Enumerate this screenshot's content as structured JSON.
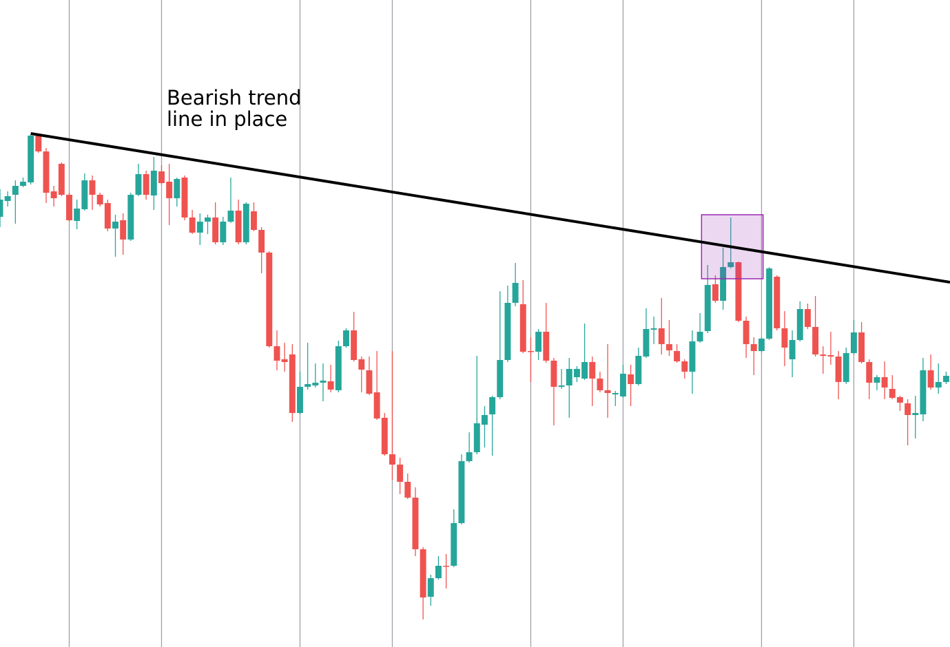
{
  "chart_data": {
    "type": "candlestick",
    "annotation": [
      "Bearish trend",
      "line in place"
    ],
    "categories": [
      null,
      null,
      null,
      null,
      null,
      null,
      null,
      null,
      null,
      null,
      null,
      null,
      null,
      null,
      null,
      null,
      null,
      null,
      null,
      null,
      null,
      null,
      null,
      null,
      null,
      null,
      null,
      null,
      null,
      null,
      null,
      null,
      null,
      null,
      null,
      null,
      null,
      null,
      null,
      null,
      null,
      null,
      null,
      null,
      null,
      null,
      null,
      null,
      null,
      null,
      null,
      null,
      null,
      null,
      null,
      null,
      null,
      null,
      null,
      null,
      null,
      null,
      null,
      null,
      null,
      null,
      null,
      null,
      null,
      null,
      null,
      null,
      null,
      null,
      null,
      null,
      null,
      null,
      null,
      null,
      null,
      null,
      null,
      null,
      null,
      null,
      null,
      null,
      null,
      null,
      null,
      null,
      null,
      null,
      null,
      null,
      null,
      null,
      null,
      null,
      null,
      null,
      null,
      null,
      null,
      null,
      null,
      null,
      null,
      null,
      null,
      null,
      null,
      null,
      null,
      null,
      null,
      null,
      null,
      null,
      null,
      null,
      null,
      null
    ],
    "open": [
      625,
      648,
      657,
      670,
      675,
      743,
      720,
      662,
      702,
      657,
      619,
      636,
      678,
      657,
      645,
      608,
      620,
      592,
      657,
      687,
      656,
      691,
      676,
      652,
      682,
      624,
      602,
      618,
      624,
      588,
      618,
      634,
      588,
      633,
      606,
      573,
      437,
      418,
      425,
      340,
      378,
      380,
      384,
      386,
      373,
      437,
      460,
      418,
      402,
      370,
      333,
      280,
      265,
      240,
      217,
      142,
      73,
      100,
      118,
      118,
      180,
      270,
      283,
      323,
      338,
      363,
      417,
      500,
      498,
      430,
      429,
      458,
      416,
      378,
      380,
      392,
      390,
      414,
      390,
      373,
      367,
      364,
      396,
      382,
      422,
      461,
      463,
      440,
      430,
      415,
      400,
      444,
      459,
      527,
      503,
      552,
      559,
      474,
      440,
      430,
      448,
      538,
      463,
      418,
      446,
      491,
      465,
      425,
      424,
      422,
      385,
      427,
      457,
      414,
      384,
      392,
      375,
      363,
      354,
      337,
      338,
      402,
      377,
      385
    ],
    "high": [
      665,
      662,
      678,
      682,
      745,
      745,
      725,
      670,
      704,
      660,
      650,
      688,
      685,
      660,
      650,
      628,
      630,
      660,
      702,
      692,
      712,
      700,
      702,
      682,
      685,
      635,
      630,
      628,
      646,
      625,
      682,
      650,
      646,
      646,
      610,
      575,
      460,
      442,
      440,
      400,
      442,
      412,
      412,
      410,
      445,
      463,
      487,
      422,
      422,
      430,
      340,
      430,
      275,
      252,
      232,
      145,
      105,
      132,
      135,
      200,
      280,
      312,
      423,
      350,
      365,
      517,
      525,
      558,
      533,
      450,
      462,
      500,
      420,
      404,
      420,
      408,
      470,
      422,
      400,
      440,
      372,
      410,
      410,
      435,
      492,
      480,
      507,
      475,
      440,
      418,
      460,
      485,
      555,
      540,
      580,
      624,
      560,
      480,
      450,
      450,
      552,
      540,
      488,
      460,
      502,
      499,
      510,
      437,
      458,
      430,
      435,
      475,
      472,
      418,
      395,
      415,
      395,
      365,
      360,
      365,
      420,
      425,
      412,
      400
    ],
    "low": [
      610,
      640,
      615,
      668,
      672,
      718,
      645,
      640,
      655,
      618,
      607,
      634,
      635,
      640,
      604,
      567,
      570,
      590,
      655,
      650,
      635,
      672,
      613,
      640,
      620,
      600,
      584,
      600,
      585,
      584,
      616,
      585,
      585,
      604,
      543,
      435,
      402,
      400,
      327,
      338,
      374,
      377,
      357,
      370,
      370,
      435,
      415,
      370,
      366,
      330,
      278,
      243,
      222,
      215,
      132,
      40,
      60,
      98,
      85,
      116,
      178,
      268,
      280,
      290,
      278,
      360,
      414,
      495,
      427,
      385,
      417,
      413,
      322,
      375,
      333,
      385,
      388,
      350,
      370,
      333,
      350,
      362,
      350,
      380,
      420,
      440,
      425,
      423,
      413,
      390,
      368,
      442,
      456,
      500,
      490,
      550,
      472,
      420,
      395,
      428,
      446,
      460,
      408,
      392,
      444,
      462,
      422,
      397,
      410,
      360,
      382,
      425,
      412,
      360,
      373,
      360,
      360,
      343,
      293,
      303,
      328,
      374,
      368,
      382
    ],
    "close": [
      650,
      655,
      670,
      676,
      743,
      720,
      660,
      652,
      657,
      620,
      637,
      678,
      657,
      643,
      608,
      618,
      592,
      657,
      687,
      657,
      692,
      674,
      652,
      680,
      624,
      602,
      618,
      624,
      588,
      618,
      634,
      588,
      644,
      606,
      573,
      437,
      416,
      414,
      340,
      378,
      382,
      384,
      387,
      374,
      437,
      460,
      417,
      403,
      368,
      332,
      280,
      265,
      240,
      217,
      142,
      72,
      100,
      118,
      117,
      180,
      270,
      283,
      325,
      337,
      363,
      417,
      500,
      529,
      429,
      429,
      458,
      416,
      378,
      380,
      404,
      404,
      414,
      390,
      373,
      369,
      369,
      397,
      382,
      423,
      462,
      463,
      440,
      431,
      415,
      400,
      444,
      458,
      526,
      503,
      552,
      559,
      474,
      440,
      430,
      448,
      550,
      463,
      435,
      446,
      491,
      465,
      425,
      423,
      422,
      385,
      427,
      457,
      414,
      384,
      392,
      377,
      362,
      355,
      337,
      340,
      402,
      377,
      385,
      394
    ],
    "up_color": "#26a69a",
    "down_color": "#ef5350",
    "xlim": [
      0,
      123.5
    ],
    "xticks": [
      9,
      21,
      39,
      51,
      69,
      81,
      99,
      111
    ],
    "grid": true,
    "ylim": [
      0,
      940
    ],
    "trendline": {
      "x": [
        4,
        123.5
      ],
      "values": [
        746,
        530
      ],
      "color": "#000000"
    },
    "highlight": {
      "x": [
        91.2,
        99.2
      ],
      "values": [
        535,
        628
      ],
      "color": "#9c27b0"
    }
  }
}
